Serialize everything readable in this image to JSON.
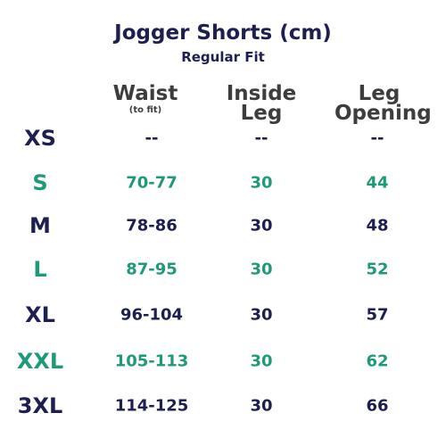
{
  "header": {
    "title": "Jogger Shorts (cm)",
    "subtitle": "Regular Fit"
  },
  "table": {
    "columns": [
      {
        "label": "Waist",
        "note": "(to fit)"
      },
      {
        "label": "Inside Leg"
      },
      {
        "label": "Leg Opening"
      }
    ],
    "rows": [
      [
        "XS",
        "--",
        "--",
        "--"
      ],
      [
        "S",
        "70-77",
        30,
        44
      ],
      [
        "M",
        "78-86",
        30,
        48
      ],
      [
        "L",
        "87-95",
        30,
        52
      ],
      [
        "XL",
        "96-104",
        30,
        57
      ],
      [
        "XXL",
        "105-113",
        30,
        62
      ],
      [
        "3XL",
        "114-125",
        30,
        66
      ]
    ]
  }
}
